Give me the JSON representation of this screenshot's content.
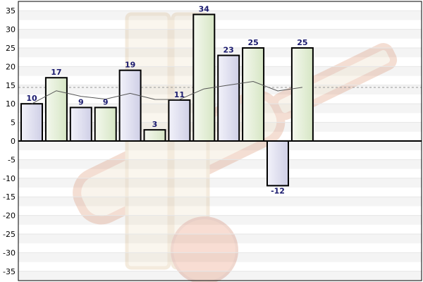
{
  "chart_data": {
    "type": "bar",
    "title": "",
    "xlabel": "",
    "ylabel": "",
    "ylim": [
      -37.5,
      37.5
    ],
    "yticks": [
      35,
      30,
      25,
      20,
      15,
      10,
      5,
      0,
      -5,
      -10,
      -15,
      -20,
      -25,
      -30,
      -35
    ],
    "values": [
      10,
      17,
      9,
      9,
      19,
      3,
      11,
      34,
      23,
      25,
      -12,
      25
    ],
    "bar_colors": [
      "blue",
      "green",
      "blue",
      "green",
      "blue",
      "green",
      "blue",
      "green",
      "blue",
      "green",
      "blue",
      "green"
    ],
    "series": [
      {
        "type": "line",
        "values": [
          10,
          13.5,
          12,
          11.25,
          12.8,
          11.17,
          11.14,
          14,
          15,
          16,
          13.45,
          14.42
        ]
      }
    ],
    "reference_line": 14.4,
    "grid": true,
    "watermark": "cricket-bat-and-ball"
  },
  "colors": {
    "bar_blue_light": "#f2f2fa",
    "bar_blue_dark": "#cfcfe6",
    "bar_green_light": "#f4f8ee",
    "bar_green_dark": "#d6e6c4",
    "bar_border": "#000000",
    "line": "#555555",
    "reference_line": "#999999",
    "band": "#f4f4f4",
    "label": "#1a1a6e"
  }
}
